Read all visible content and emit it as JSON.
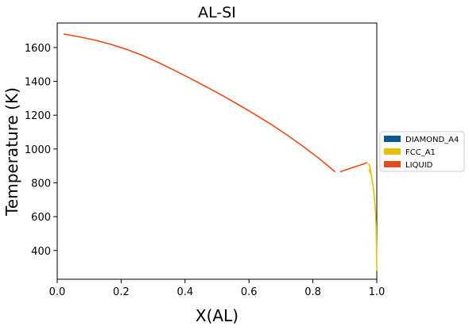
{
  "chart_data": {
    "type": "line",
    "title": "AL-SI",
    "xlabel": "X(AL)",
    "ylabel": "Temperature (K)",
    "xlim": [
      0.0,
      1.0
    ],
    "ylim": [
      230,
      1745
    ],
    "x_ticks": [
      0.0,
      0.2,
      0.4,
      0.6,
      0.8,
      1.0
    ],
    "y_ticks": [
      400,
      600,
      800,
      1000,
      1200,
      1400,
      1600
    ],
    "x_tick_labels": [
      "0.0",
      "0.2",
      "0.4",
      "0.6",
      "0.8",
      "1.0"
    ],
    "y_tick_labels": [
      "400",
      "600",
      "800",
      "1000",
      "1200",
      "1400",
      "1600"
    ],
    "grid": false,
    "legend_position": "right-outside",
    "colors": {
      "DIAMOND_A4": "#0b5a8f",
      "FCC_A1": "#e8c000",
      "LIQUID": "#e84a1c"
    },
    "legend": [
      "DIAMOND_A4",
      "FCC_A1",
      "LIQUID"
    ],
    "series": [
      {
        "name": "LIQUID",
        "segments": [
          {
            "x": [
              0.02,
              0.07,
              0.12,
              0.17,
              0.22,
              0.27,
              0.32,
              0.37,
              0.42,
              0.47,
              0.52,
              0.57,
              0.62,
              0.67,
              0.72,
              0.77,
              0.82,
              0.87
            ],
            "y": [
              1680,
              1663,
              1643,
              1618,
              1587,
              1551,
              1508,
              1462,
              1414,
              1364,
              1313,
              1259,
              1203,
              1145,
              1082,
              1015,
              943,
              865
            ]
          },
          {
            "x": [
              0.885,
              0.92,
              0.96,
              0.97
            ],
            "y": [
              865,
              888,
              912,
              920
            ]
          }
        ]
      },
      {
        "name": "FCC_A1",
        "segments": [
          {
            "x": [
              0.975,
              0.98,
              0.985,
              0.99,
              0.993,
              0.996,
              0.998,
              0.999,
              1.0
            ],
            "y": [
              915,
              880,
              820,
              760,
              700,
              630,
              540,
              420,
              280
            ]
          },
          {
            "x": [
              0.975,
              0.98
            ],
            "y": [
              880,
              855
            ]
          }
        ]
      },
      {
        "name": "DIAMOND_A4",
        "segments": []
      }
    ]
  }
}
